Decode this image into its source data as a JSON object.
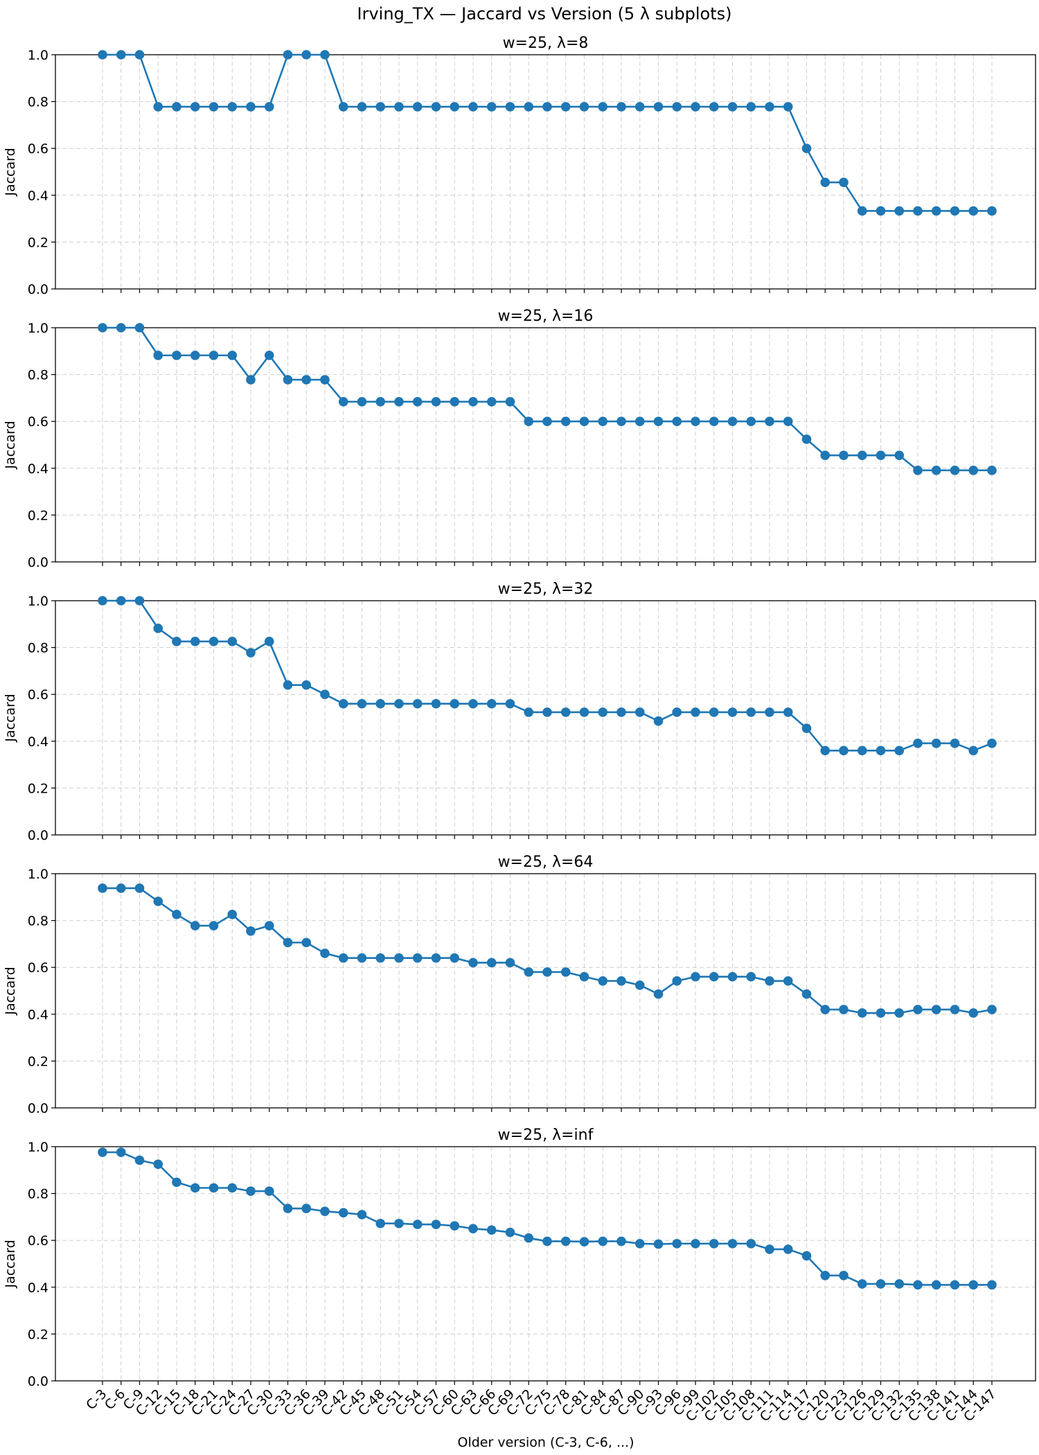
{
  "figure": {
    "suptitle": "Irving_TX — Jaccard vs Version (5 λ subplots)",
    "xlabel": "Older version (C-3, C-6, ...)"
  },
  "chart_data": {
    "type": "line",
    "line_color": "#1f77b4",
    "categories": [
      "C-3",
      "C-6",
      "C-9",
      "C-12",
      "C-15",
      "C-18",
      "C-21",
      "C-24",
      "C-27",
      "C-30",
      "C-33",
      "C-36",
      "C-39",
      "C-42",
      "C-45",
      "C-48",
      "C-51",
      "C-54",
      "C-57",
      "C-60",
      "C-63",
      "C-66",
      "C-69",
      "C-72",
      "C-75",
      "C-78",
      "C-81",
      "C-84",
      "C-87",
      "C-90",
      "C-93",
      "C-96",
      "C-99",
      "C-102",
      "C-105",
      "C-108",
      "C-111",
      "C-114",
      "C-117",
      "C-120",
      "C-123",
      "C-126",
      "C-129",
      "C-132",
      "C-135",
      "C-138",
      "C-141",
      "C-144",
      "C-147"
    ],
    "ylim": [
      0,
      1
    ],
    "yticks": [
      "0.0",
      "0.2",
      "0.4",
      "0.6",
      "0.8",
      "1.0"
    ],
    "grid": true,
    "subplots": [
      {
        "title": "w=25, λ=8",
        "ylabel": "Jaccard",
        "values": [
          1.0,
          1.0,
          1.0,
          0.778,
          0.778,
          0.778,
          0.778,
          0.778,
          0.778,
          0.778,
          1.0,
          1.0,
          1.0,
          0.778,
          0.778,
          0.778,
          0.778,
          0.778,
          0.778,
          0.778,
          0.778,
          0.778,
          0.778,
          0.778,
          0.778,
          0.778,
          0.778,
          0.778,
          0.778,
          0.778,
          0.778,
          0.778,
          0.778,
          0.778,
          0.778,
          0.778,
          0.778,
          0.778,
          0.6,
          0.455,
          0.455,
          0.333,
          0.333,
          0.333,
          0.333,
          0.333,
          0.333,
          0.333,
          0.333
        ]
      },
      {
        "title": "w=25, λ=16",
        "ylabel": "Jaccard",
        "values": [
          1.0,
          1.0,
          1.0,
          0.882,
          0.882,
          0.882,
          0.882,
          0.882,
          0.778,
          0.882,
          0.778,
          0.778,
          0.778,
          0.684,
          0.684,
          0.684,
          0.684,
          0.684,
          0.684,
          0.684,
          0.684,
          0.684,
          0.684,
          0.6,
          0.6,
          0.6,
          0.6,
          0.6,
          0.6,
          0.6,
          0.6,
          0.6,
          0.6,
          0.6,
          0.6,
          0.6,
          0.6,
          0.6,
          0.524,
          0.455,
          0.455,
          0.455,
          0.455,
          0.455,
          0.391,
          0.391,
          0.391,
          0.391,
          0.391
        ]
      },
      {
        "title": "w=25, λ=32",
        "ylabel": "Jaccard",
        "values": [
          1.0,
          1.0,
          1.0,
          0.882,
          0.826,
          0.826,
          0.826,
          0.826,
          0.778,
          0.826,
          0.64,
          0.64,
          0.6,
          0.56,
          0.56,
          0.56,
          0.56,
          0.56,
          0.56,
          0.56,
          0.56,
          0.56,
          0.56,
          0.524,
          0.524,
          0.524,
          0.524,
          0.524,
          0.524,
          0.524,
          0.486,
          0.524,
          0.524,
          0.524,
          0.524,
          0.524,
          0.524,
          0.524,
          0.455,
          0.36,
          0.36,
          0.36,
          0.36,
          0.36,
          0.391,
          0.391,
          0.391,
          0.36,
          0.391
        ]
      },
      {
        "title": "w=25, λ=64",
        "ylabel": "Jaccard",
        "values": [
          0.938,
          0.938,
          0.938,
          0.882,
          0.826,
          0.778,
          0.778,
          0.826,
          0.755,
          0.778,
          0.706,
          0.706,
          0.66,
          0.64,
          0.64,
          0.64,
          0.64,
          0.64,
          0.64,
          0.64,
          0.62,
          0.62,
          0.62,
          0.58,
          0.58,
          0.58,
          0.56,
          0.542,
          0.542,
          0.524,
          0.486,
          0.542,
          0.56,
          0.56,
          0.56,
          0.56,
          0.542,
          0.542,
          0.486,
          0.42,
          0.42,
          0.405,
          0.405,
          0.405,
          0.42,
          0.42,
          0.42,
          0.405,
          0.42
        ]
      },
      {
        "title": "w=25, λ=inf",
        "ylabel": "Jaccard",
        "values": [
          0.976,
          0.976,
          0.942,
          0.925,
          0.848,
          0.824,
          0.824,
          0.824,
          0.81,
          0.81,
          0.736,
          0.736,
          0.724,
          0.718,
          0.71,
          0.672,
          0.672,
          0.668,
          0.668,
          0.662,
          0.65,
          0.644,
          0.634,
          0.61,
          0.596,
          0.596,
          0.594,
          0.596,
          0.596,
          0.586,
          0.584,
          0.586,
          0.586,
          0.586,
          0.586,
          0.586,
          0.562,
          0.562,
          0.534,
          0.45,
          0.45,
          0.414,
          0.414,
          0.414,
          0.41,
          0.41,
          0.41,
          0.41,
          0.41
        ]
      }
    ]
  }
}
